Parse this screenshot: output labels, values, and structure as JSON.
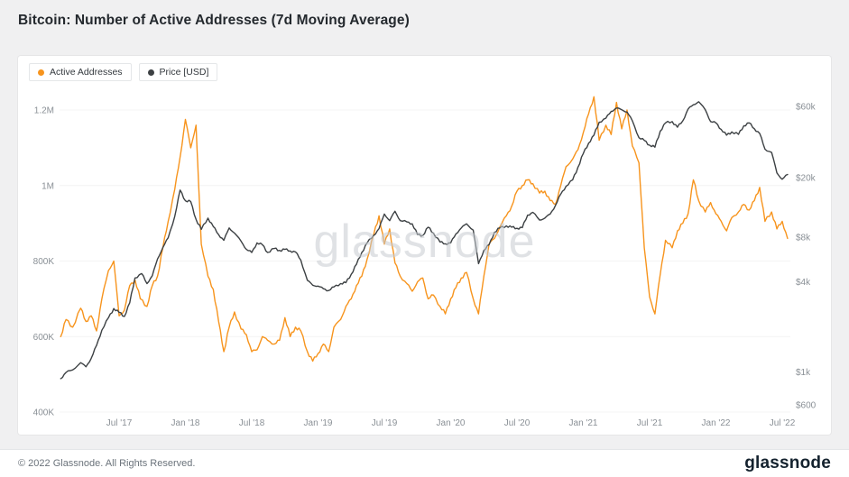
{
  "page": {
    "title": "Bitcoin: Number of Active Addresses (7d Moving Average)",
    "watermark": "glassnode",
    "footer": {
      "copyright": "© 2022 Glassnode. All Rights Reserved.",
      "brand": "glassnode"
    }
  },
  "legend": [
    {
      "label": "Active Addresses",
      "color": "#f7941d"
    },
    {
      "label": "Price [USD]",
      "color": "#3c4043"
    }
  ],
  "chart_data": {
    "type": "line",
    "title": "Bitcoin: Number of Active Addresses (7d Moving Average)",
    "grid": false,
    "legend_position": "top-left",
    "x_axis": {
      "label": "",
      "range_decimal_years": [
        2017.05,
        2022.56
      ],
      "ticks": [
        {
          "t": 2017.5,
          "label": "Jul '17"
        },
        {
          "t": 2018.0,
          "label": "Jan '18"
        },
        {
          "t": 2018.5,
          "label": "Jul '18"
        },
        {
          "t": 2019.0,
          "label": "Jan '19"
        },
        {
          "t": 2019.5,
          "label": "Jul '19"
        },
        {
          "t": 2020.0,
          "label": "Jan '20"
        },
        {
          "t": 2020.5,
          "label": "Jul '20"
        },
        {
          "t": 2021.0,
          "label": "Jan '21"
        },
        {
          "t": 2021.5,
          "label": "Jul '21"
        },
        {
          "t": 2022.0,
          "label": "Jan '22"
        },
        {
          "t": 2022.5,
          "label": "Jul '22"
        }
      ]
    },
    "y_left": {
      "label": "Active Addresses",
      "scale": "linear",
      "units": "thousand addresses",
      "ylim": [
        390,
        1265
      ],
      "ticks": [
        {
          "v": 400,
          "label": "400K"
        },
        {
          "v": 600,
          "label": "600K"
        },
        {
          "v": 800,
          "label": "800K"
        },
        {
          "v": 1000,
          "label": "1M"
        },
        {
          "v": 1200,
          "label": "1.2M"
        }
      ]
    },
    "y_right": {
      "label": "Price [USD]",
      "scale": "log",
      "units": "USD",
      "ylim": [
        520,
        82000
      ],
      "ticks": [
        {
          "v": 60000,
          "label": "$60k"
        },
        {
          "v": 20000,
          "label": "$20k"
        },
        {
          "v": 8000,
          "label": "$8k"
        },
        {
          "v": 4000,
          "label": "$4k"
        },
        {
          "v": 1000,
          "label": "$1k"
        },
        {
          "v": 600,
          "label": "$600"
        }
      ]
    },
    "series": [
      {
        "name": "Active Addresses",
        "axis": "left",
        "color": "#f7941d",
        "units": "thousand addresses",
        "points": [
          [
            2017.06,
            600
          ],
          [
            2017.1,
            645
          ],
          [
            2017.15,
            625
          ],
          [
            2017.21,
            675
          ],
          [
            2017.25,
            640
          ],
          [
            2017.29,
            655
          ],
          [
            2017.33,
            615
          ],
          [
            2017.37,
            700
          ],
          [
            2017.42,
            775
          ],
          [
            2017.46,
            800
          ],
          [
            2017.5,
            655
          ],
          [
            2017.54,
            670
          ],
          [
            2017.58,
            735
          ],
          [
            2017.62,
            750
          ],
          [
            2017.66,
            700
          ],
          [
            2017.71,
            680
          ],
          [
            2017.75,
            735
          ],
          [
            2017.79,
            760
          ],
          [
            2017.83,
            835
          ],
          [
            2017.87,
            905
          ],
          [
            2017.92,
            990
          ],
          [
            2017.96,
            1075
          ],
          [
            2018.0,
            1175
          ],
          [
            2018.04,
            1100
          ],
          [
            2018.08,
            1160
          ],
          [
            2018.1,
            1000
          ],
          [
            2018.12,
            845
          ],
          [
            2018.17,
            760
          ],
          [
            2018.21,
            725
          ],
          [
            2018.25,
            640
          ],
          [
            2018.29,
            560
          ],
          [
            2018.33,
            625
          ],
          [
            2018.37,
            665
          ],
          [
            2018.42,
            620
          ],
          [
            2018.46,
            605
          ],
          [
            2018.5,
            560
          ],
          [
            2018.54,
            565
          ],
          [
            2018.58,
            600
          ],
          [
            2018.62,
            590
          ],
          [
            2018.67,
            580
          ],
          [
            2018.71,
            590
          ],
          [
            2018.75,
            650
          ],
          [
            2018.79,
            600
          ],
          [
            2018.83,
            625
          ],
          [
            2018.87,
            615
          ],
          [
            2018.92,
            560
          ],
          [
            2018.96,
            535
          ],
          [
            2019.0,
            555
          ],
          [
            2019.04,
            580
          ],
          [
            2019.08,
            560
          ],
          [
            2019.12,
            625
          ],
          [
            2019.17,
            645
          ],
          [
            2019.21,
            680
          ],
          [
            2019.25,
            700
          ],
          [
            2019.29,
            735
          ],
          [
            2019.33,
            760
          ],
          [
            2019.37,
            805
          ],
          [
            2019.42,
            870
          ],
          [
            2019.46,
            920
          ],
          [
            2019.5,
            845
          ],
          [
            2019.54,
            885
          ],
          [
            2019.58,
            795
          ],
          [
            2019.62,
            760
          ],
          [
            2019.67,
            740
          ],
          [
            2019.71,
            720
          ],
          [
            2019.75,
            745
          ],
          [
            2019.79,
            755
          ],
          [
            2019.83,
            700
          ],
          [
            2019.87,
            710
          ],
          [
            2019.92,
            680
          ],
          [
            2019.96,
            660
          ],
          [
            2020.0,
            700
          ],
          [
            2020.04,
            730
          ],
          [
            2020.08,
            755
          ],
          [
            2020.12,
            770
          ],
          [
            2020.17,
            700
          ],
          [
            2020.21,
            660
          ],
          [
            2020.25,
            760
          ],
          [
            2020.29,
            845
          ],
          [
            2020.33,
            860
          ],
          [
            2020.37,
            890
          ],
          [
            2020.42,
            920
          ],
          [
            2020.46,
            945
          ],
          [
            2020.5,
            985
          ],
          [
            2020.54,
            1000
          ],
          [
            2020.58,
            1015
          ],
          [
            2020.62,
            1005
          ],
          [
            2020.67,
            980
          ],
          [
            2020.71,
            985
          ],
          [
            2020.75,
            960
          ],
          [
            2020.79,
            950
          ],
          [
            2020.83,
            1000
          ],
          [
            2020.87,
            1050
          ],
          [
            2020.92,
            1070
          ],
          [
            2020.96,
            1095
          ],
          [
            2021.0,
            1140
          ],
          [
            2021.04,
            1190
          ],
          [
            2021.08,
            1235
          ],
          [
            2021.12,
            1120
          ],
          [
            2021.17,
            1160
          ],
          [
            2021.21,
            1135
          ],
          [
            2021.25,
            1220
          ],
          [
            2021.29,
            1150
          ],
          [
            2021.33,
            1200
          ],
          [
            2021.37,
            1105
          ],
          [
            2021.42,
            1060
          ],
          [
            2021.46,
            835
          ],
          [
            2021.5,
            705
          ],
          [
            2021.54,
            660
          ],
          [
            2021.58,
            765
          ],
          [
            2021.62,
            855
          ],
          [
            2021.67,
            835
          ],
          [
            2021.71,
            880
          ],
          [
            2021.75,
            900
          ],
          [
            2021.79,
            925
          ],
          [
            2021.83,
            1015
          ],
          [
            2021.87,
            960
          ],
          [
            2021.92,
            930
          ],
          [
            2021.96,
            955
          ],
          [
            2022.0,
            925
          ],
          [
            2022.04,
            905
          ],
          [
            2022.08,
            880
          ],
          [
            2022.12,
            915
          ],
          [
            2022.17,
            930
          ],
          [
            2022.21,
            950
          ],
          [
            2022.25,
            935
          ],
          [
            2022.29,
            960
          ],
          [
            2022.33,
            995
          ],
          [
            2022.37,
            905
          ],
          [
            2022.42,
            930
          ],
          [
            2022.46,
            885
          ],
          [
            2022.5,
            905
          ],
          [
            2022.54,
            860
          ]
        ]
      },
      {
        "name": "Price [USD]",
        "axis": "right",
        "color": "#3c4043",
        "units": "USD",
        "points": [
          [
            2017.06,
            900
          ],
          [
            2017.1,
            990
          ],
          [
            2017.15,
            1030
          ],
          [
            2017.21,
            1150
          ],
          [
            2017.25,
            1080
          ],
          [
            2017.29,
            1230
          ],
          [
            2017.33,
            1500
          ],
          [
            2017.37,
            1900
          ],
          [
            2017.42,
            2300
          ],
          [
            2017.46,
            2650
          ],
          [
            2017.5,
            2500
          ],
          [
            2017.54,
            2350
          ],
          [
            2017.58,
            2900
          ],
          [
            2017.62,
            4250
          ],
          [
            2017.67,
            4550
          ],
          [
            2017.71,
            3900
          ],
          [
            2017.75,
            4400
          ],
          [
            2017.79,
            5700
          ],
          [
            2017.83,
            6800
          ],
          [
            2017.87,
            7900
          ],
          [
            2017.92,
            11000
          ],
          [
            2017.96,
            16500
          ],
          [
            2018.0,
            14000
          ],
          [
            2018.04,
            13800
          ],
          [
            2018.08,
            10500
          ],
          [
            2018.12,
            9000
          ],
          [
            2018.17,
            10700
          ],
          [
            2018.21,
            9400
          ],
          [
            2018.25,
            8300
          ],
          [
            2018.29,
            7600
          ],
          [
            2018.33,
            9200
          ],
          [
            2018.37,
            8500
          ],
          [
            2018.42,
            7500
          ],
          [
            2018.46,
            6600
          ],
          [
            2018.5,
            6300
          ],
          [
            2018.54,
            7300
          ],
          [
            2018.58,
            7100
          ],
          [
            2018.62,
            6300
          ],
          [
            2018.67,
            6700
          ],
          [
            2018.71,
            6500
          ],
          [
            2018.75,
            6600
          ],
          [
            2018.79,
            6450
          ],
          [
            2018.83,
            6350
          ],
          [
            2018.87,
            5600
          ],
          [
            2018.92,
            4100
          ],
          [
            2018.96,
            3800
          ],
          [
            2019.0,
            3750
          ],
          [
            2019.04,
            3600
          ],
          [
            2019.08,
            3500
          ],
          [
            2019.12,
            3700
          ],
          [
            2019.17,
            3900
          ],
          [
            2019.21,
            3950
          ],
          [
            2019.25,
            4500
          ],
          [
            2019.29,
            5250
          ],
          [
            2019.33,
            6300
          ],
          [
            2019.37,
            7300
          ],
          [
            2019.42,
            8200
          ],
          [
            2019.46,
            9100
          ],
          [
            2019.5,
            11400
          ],
          [
            2019.54,
            10300
          ],
          [
            2019.58,
            11900
          ],
          [
            2019.62,
            10300
          ],
          [
            2019.67,
            10100
          ],
          [
            2019.71,
            9800
          ],
          [
            2019.75,
            8300
          ],
          [
            2019.79,
            8200
          ],
          [
            2019.83,
            9300
          ],
          [
            2019.87,
            8500
          ],
          [
            2019.92,
            7400
          ],
          [
            2019.96,
            7200
          ],
          [
            2020.0,
            7300
          ],
          [
            2020.04,
            8400
          ],
          [
            2020.08,
            9200
          ],
          [
            2020.12,
            9800
          ],
          [
            2020.17,
            8900
          ],
          [
            2020.21,
            5300
          ],
          [
            2020.25,
            6500
          ],
          [
            2020.29,
            7100
          ],
          [
            2020.33,
            8600
          ],
          [
            2020.37,
            9200
          ],
          [
            2020.42,
            9500
          ],
          [
            2020.46,
            9300
          ],
          [
            2020.5,
            9150
          ],
          [
            2020.54,
            9250
          ],
          [
            2020.58,
            11200
          ],
          [
            2020.62,
            11700
          ],
          [
            2020.67,
            10400
          ],
          [
            2020.71,
            10700
          ],
          [
            2020.75,
            11400
          ],
          [
            2020.79,
            13000
          ],
          [
            2020.83,
            15500
          ],
          [
            2020.87,
            17500
          ],
          [
            2020.92,
            19300
          ],
          [
            2020.96,
            23500
          ],
          [
            2021.0,
            29000
          ],
          [
            2021.04,
            34000
          ],
          [
            2021.08,
            38500
          ],
          [
            2021.12,
            47000
          ],
          [
            2021.17,
            50000
          ],
          [
            2021.21,
            55500
          ],
          [
            2021.25,
            58500
          ],
          [
            2021.29,
            57000
          ],
          [
            2021.33,
            55000
          ],
          [
            2021.37,
            48000
          ],
          [
            2021.42,
            37000
          ],
          [
            2021.46,
            35500
          ],
          [
            2021.5,
            33000
          ],
          [
            2021.54,
            32000
          ],
          [
            2021.58,
            41000
          ],
          [
            2021.62,
            46500
          ],
          [
            2021.67,
            47500
          ],
          [
            2021.71,
            43500
          ],
          [
            2021.75,
            48000
          ],
          [
            2021.79,
            57500
          ],
          [
            2021.83,
            61500
          ],
          [
            2021.87,
            64500
          ],
          [
            2021.92,
            57000
          ],
          [
            2021.96,
            47500
          ],
          [
            2022.0,
            46500
          ],
          [
            2022.04,
            42000
          ],
          [
            2022.08,
            38500
          ],
          [
            2022.12,
            40500
          ],
          [
            2022.17,
            39000
          ],
          [
            2022.21,
            44500
          ],
          [
            2022.25,
            46500
          ],
          [
            2022.29,
            42500
          ],
          [
            2022.33,
            39500
          ],
          [
            2022.37,
            31000
          ],
          [
            2022.42,
            29500
          ],
          [
            2022.46,
            21500
          ],
          [
            2022.5,
            19500
          ],
          [
            2022.54,
            21000
          ]
        ]
      }
    ]
  }
}
